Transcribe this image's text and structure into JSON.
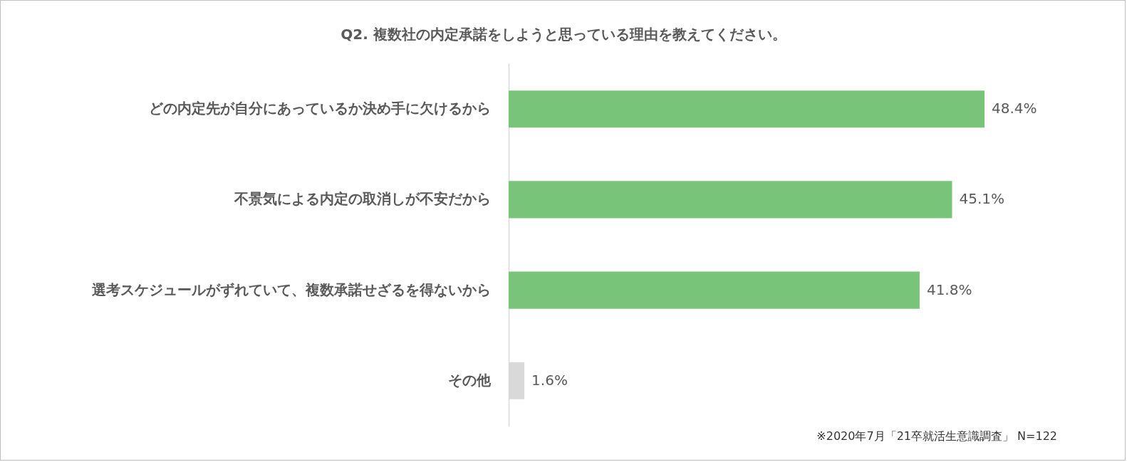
{
  "chart_data": {
    "type": "bar",
    "orientation": "horizontal",
    "title": "Q2. 複数社の内定承諾をしようと思っている理由を教えてください。",
    "categories": [
      "どの内定先が自分にあっているか決め手に欠けるから",
      "不景気による内定の取消しが不安だから",
      "選考スケジュールがずれていて、複数承諾せざるを得ないから",
      "その他"
    ],
    "values": [
      48.4,
      45.1,
      41.8,
      1.6
    ],
    "value_labels": [
      "48.4%",
      "45.1%",
      "41.8%",
      "1.6%"
    ],
    "colors": [
      "#78c57a",
      "#78c57a",
      "#78c57a",
      "#d9d9d9"
    ],
    "annotations": [
      "※2020年7月「21卒就活生意識調査」 N=122"
    ]
  }
}
